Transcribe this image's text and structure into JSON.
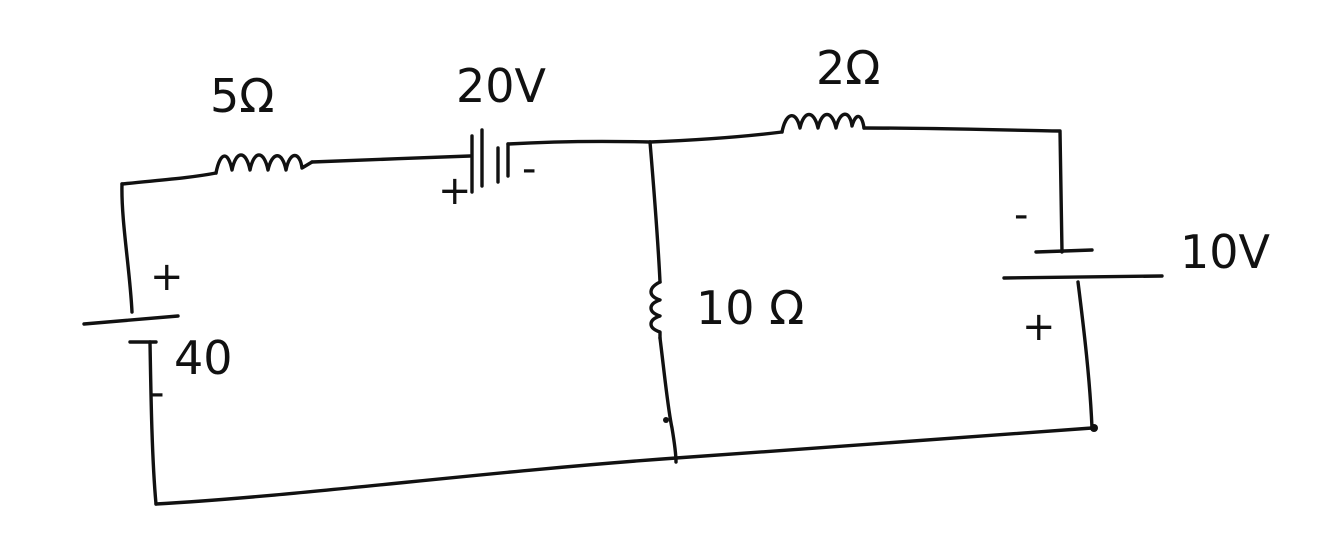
{
  "diagram": {
    "resistor_left_label": "5Ω",
    "source_top_label": "20V",
    "resistor_right_label": "2Ω",
    "resistor_middle_label": "10 Ω",
    "source_right_label": "10V",
    "source_left_label": "40",
    "signs": {
      "source_top_plus": "+",
      "source_top_minus": "-",
      "source_left_plus": "+",
      "source_left_minus": "-",
      "source_right_minus": "-",
      "source_right_plus": "+"
    }
  }
}
